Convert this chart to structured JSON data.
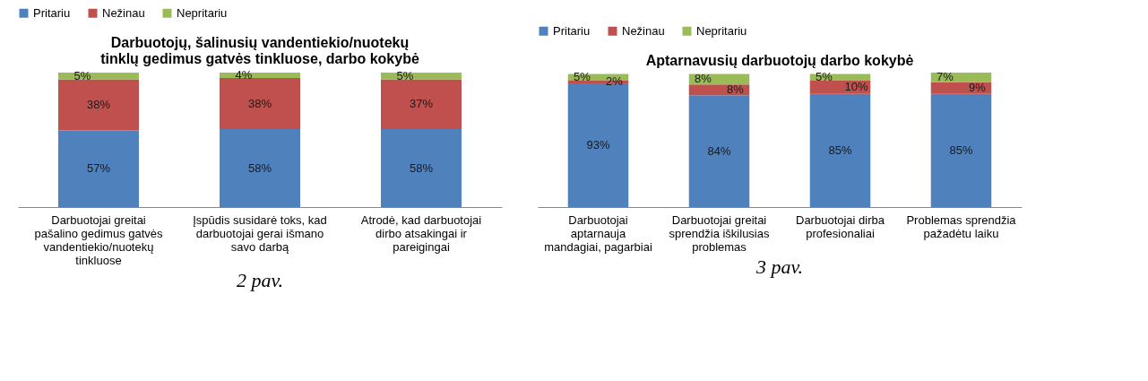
{
  "chart_data": [
    {
      "type": "bar",
      "stacked": true,
      "title": "Darbuotojų, šalinusių vandentiekio/nuotekų tinklų gedimus gatvės tinkluose, darbo kokybė",
      "legend": "top",
      "categories": [
        "Darbuotojai greitai pašalino gedimus gatvės vandentiekio/nuotekų tinkluose",
        "Įspūdis susidarė toks, kad darbuotojai gerai išmano savo darbą",
        "Atrodė, kad darbuotojai dirbo atsakingai ir pareigingai"
      ],
      "series": [
        {
          "name": "Pritariu",
          "color": "#4f81bd",
          "values": [
            57,
            58,
            58
          ],
          "value_labels": [
            "57%",
            "58%",
            "58%"
          ]
        },
        {
          "name": "Nežinau",
          "color": "#c0504d",
          "values": [
            38,
            38,
            37
          ],
          "value_labels": [
            "38%",
            "38%",
            "37%"
          ]
        },
        {
          "name": "Nepritariu",
          "color": "#9bbb59",
          "values": [
            5,
            4,
            5
          ],
          "value_labels": [
            "5%",
            "4%",
            "5%"
          ]
        }
      ],
      "annotations": [
        "2 pav."
      ]
    },
    {
      "type": "bar",
      "stacked": true,
      "title": "Aptarnavusių darbuotojų darbo kokybė",
      "legend": "top",
      "categories": [
        "Darbuotojai aptarnauja mandagiai, pagarbiai",
        "Darbuotojai greitai sprendžia iškilusias problemas",
        "Darbuotojai dirba profesionaliai",
        "Problemas sprendžia pažadėtu laiku"
      ],
      "series": [
        {
          "name": "Pritariu",
          "color": "#4f81bd",
          "values": [
            93,
            84,
            85,
            85
          ],
          "value_labels": [
            "93%",
            "84%",
            "85%",
            "85%"
          ]
        },
        {
          "name": "Nežinau",
          "color": "#c0504d",
          "values": [
            2,
            8,
            10,
            9
          ],
          "value_labels": [
            "2%",
            "8%",
            "10%",
            "9%"
          ]
        },
        {
          "name": "Nepritariu",
          "color": "#9bbb59",
          "values": [
            5,
            8,
            5,
            7
          ],
          "value_labels": [
            "5%",
            "8%",
            "5%",
            "7%"
          ]
        }
      ],
      "annotations": [
        "3 pav."
      ]
    }
  ]
}
